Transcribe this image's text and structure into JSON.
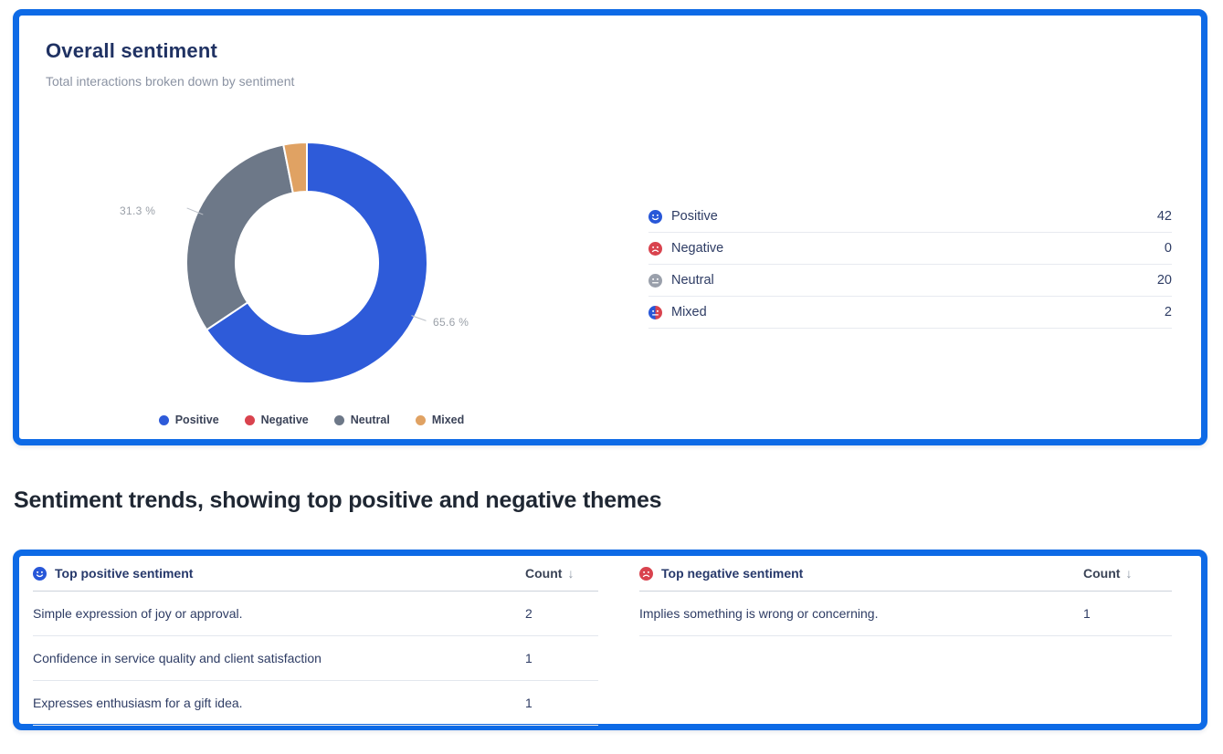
{
  "overall_card": {
    "title": "Overall sentiment",
    "subtitle": "Total interactions broken down by sentiment",
    "legend": [
      {
        "label": "Positive",
        "color": "#2e5bd9"
      },
      {
        "label": "Negative",
        "color": "#d9434e"
      },
      {
        "label": "Neutral",
        "color": "#6d7888"
      },
      {
        "label": "Mixed",
        "color": "#e0a263"
      }
    ],
    "stats": [
      {
        "icon": "positive-face-icon",
        "label": "Positive",
        "value": "42"
      },
      {
        "icon": "negative-face-icon",
        "label": "Negative",
        "value": "0"
      },
      {
        "icon": "neutral-face-icon",
        "label": "Neutral",
        "value": "20"
      },
      {
        "icon": "mixed-face-icon",
        "label": "Mixed",
        "value": "2"
      }
    ]
  },
  "chart_data": {
    "type": "pie",
    "subtype": "donut",
    "title": "Overall sentiment",
    "categories": [
      "Positive",
      "Negative",
      "Neutral",
      "Mixed"
    ],
    "values": [
      42,
      0,
      20,
      2
    ],
    "percentages": [
      65.6,
      0,
      31.3,
      3.1
    ],
    "colors": [
      "#2e5bd9",
      "#d9434e",
      "#6d7888",
      "#e0a263"
    ],
    "slice_labels": {
      "positive": "65.6 %",
      "neutral": "31.3 %"
    },
    "legend_position": "bottom",
    "start_angle_deg": 0,
    "direction": "clockwise"
  },
  "section_heading": "Sentiment trends, showing top positive and negative themes",
  "tables": {
    "positive": {
      "title": "Top positive sentiment",
      "count_header": "Count",
      "sort_icon": "↓",
      "rows": [
        {
          "text": "Simple expression of joy or approval.",
          "count": "2"
        },
        {
          "text": "Confidence in service quality and client satisfaction",
          "count": "1"
        },
        {
          "text": "Expresses enthusiasm for a gift idea.",
          "count": "1"
        }
      ]
    },
    "negative": {
      "title": "Top negative sentiment",
      "count_header": "Count",
      "sort_icon": "↓",
      "rows": [
        {
          "text": "Implies something is wrong or concerning.",
          "count": "1"
        }
      ]
    }
  }
}
